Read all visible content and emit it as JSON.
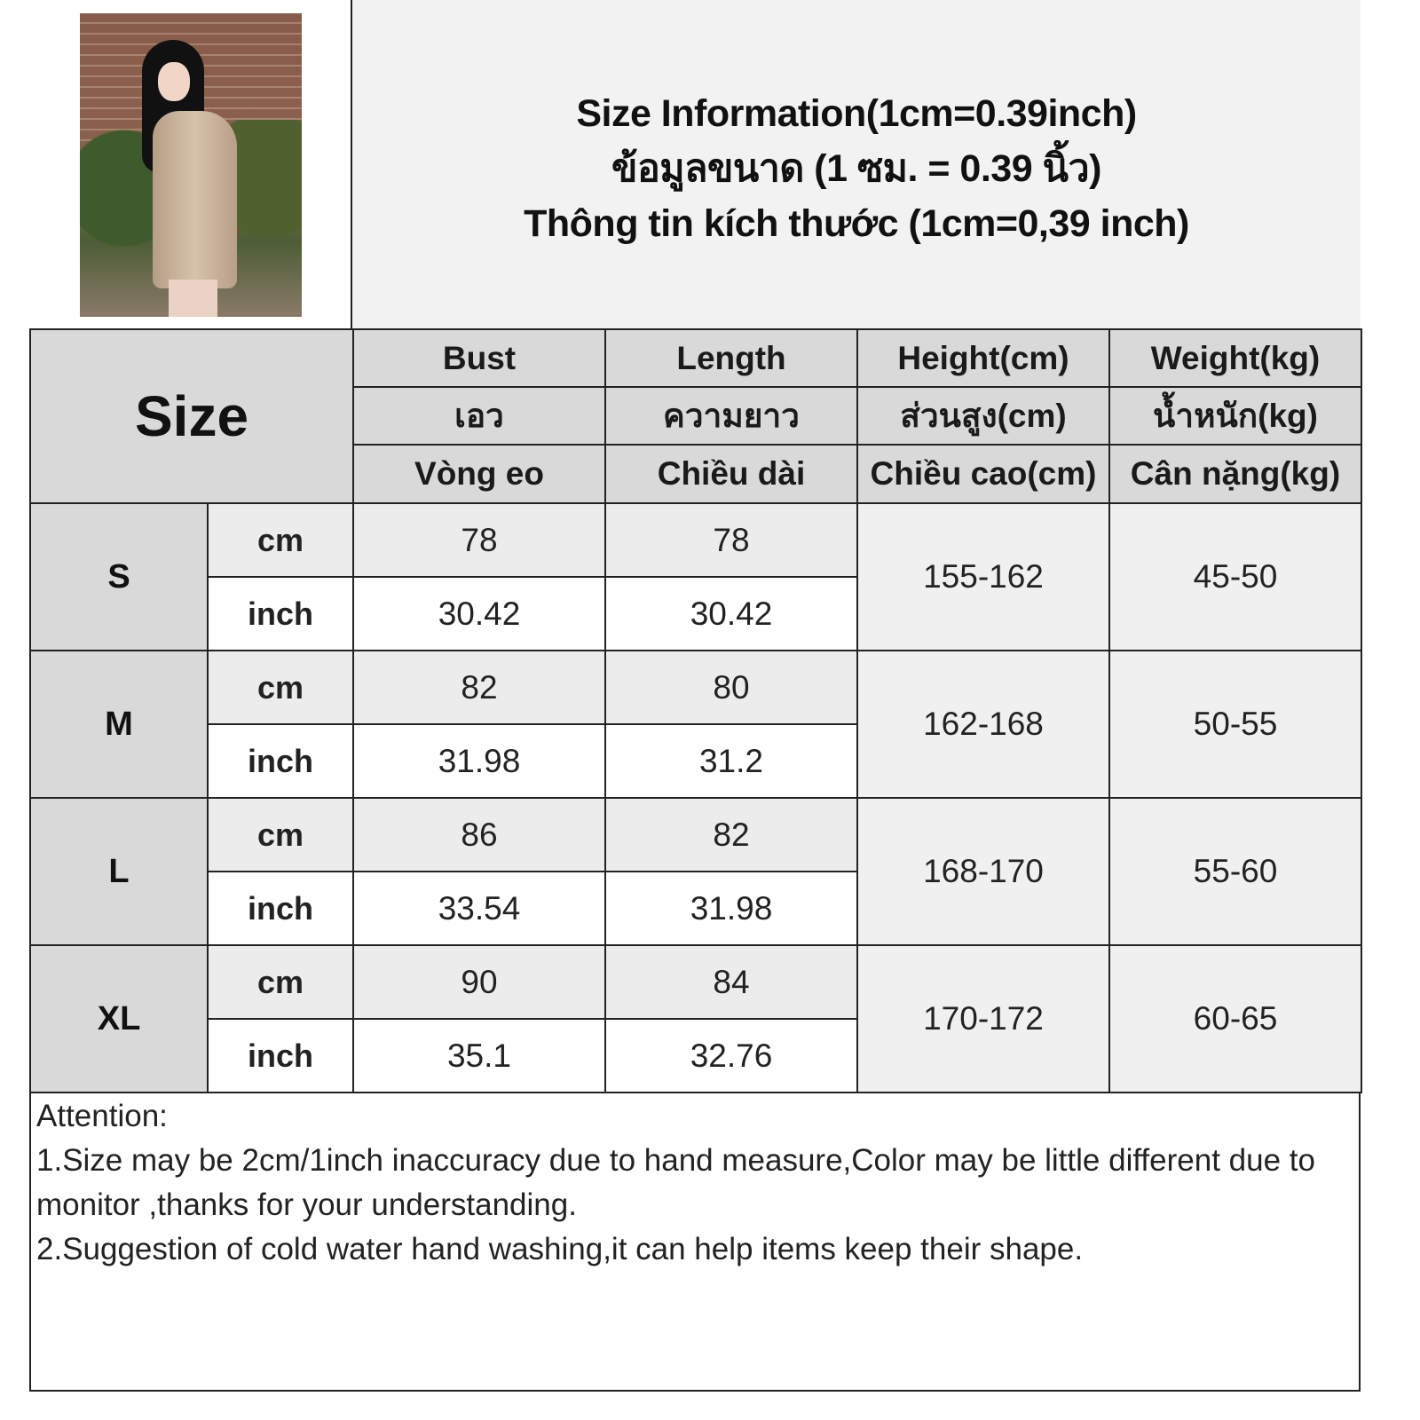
{
  "title": {
    "lines": [
      "Size Information(1cm=0.39inch)",
      "ข้อมูลขนาด (1 ซม. = 0.39 นิ้ว)",
      "Thông tin kích thước (1cm=0,39 inch)"
    ]
  },
  "table": {
    "size_header": "Size",
    "columns": [
      {
        "en": "Bust",
        "th": "เอว",
        "vi": "Vòng eo"
      },
      {
        "en": "Length",
        "th": "ความยาว",
        "vi": "Chiều dài"
      },
      {
        "en": "Height(cm)",
        "th": "ส่วนสูง(cm)",
        "vi": "Chiều cao(cm)"
      },
      {
        "en": "Weight(kg)",
        "th": "น้ำหนัก(kg)",
        "vi": "Cân nặng(kg)"
      }
    ],
    "units": {
      "cm": "cm",
      "inch": "inch"
    },
    "rows": [
      {
        "size": "S",
        "bust_cm": "78",
        "length_cm": "78",
        "bust_inch": "30.42",
        "length_inch": "30.42",
        "height": "155-162",
        "weight": "45-50"
      },
      {
        "size": "M",
        "bust_cm": "82",
        "length_cm": "80",
        "bust_inch": "31.98",
        "length_inch": "31.2",
        "height": "162-168",
        "weight": "50-55"
      },
      {
        "size": "L",
        "bust_cm": "86",
        "length_cm": "82",
        "bust_inch": "33.54",
        "length_inch": "31.98",
        "height": "168-170",
        "weight": "55-60"
      },
      {
        "size": "XL",
        "bust_cm": "90",
        "length_cm": "84",
        "bust_inch": "35.1",
        "length_inch": "32.76",
        "height": "170-172",
        "weight": "60-65"
      }
    ]
  },
  "notes": {
    "heading": "Attention:",
    "items": [
      "1.Size may be 2cm/1inch inaccuracy due to hand measure,Color may be little different due to monitor ,thanks for your understanding.",
      "2.Suggestion of cold water hand washing,it can help items keep their shape."
    ]
  },
  "colors": {
    "header_gray": "#d9d9d9",
    "title_bg": "#f2f2f2",
    "border": "#222222"
  }
}
